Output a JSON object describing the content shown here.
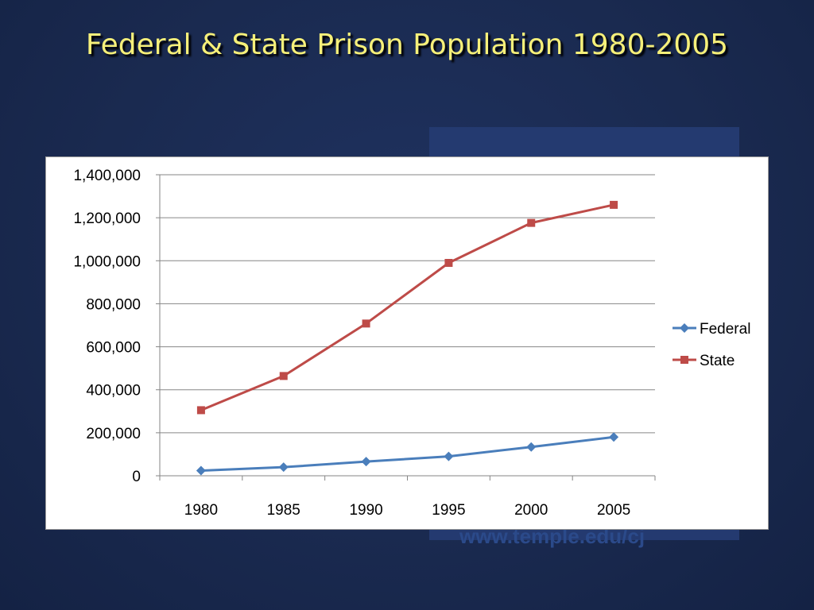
{
  "slide": {
    "title": "Federal & State Prison Population 1980-2005",
    "watermark_url": "www.temple.edu/cj"
  },
  "chart_data": {
    "type": "line",
    "title": "",
    "xlabel": "",
    "ylabel": "",
    "categories": [
      "1980",
      "1985",
      "1990",
      "1995",
      "2000",
      "2005"
    ],
    "ylim": [
      0,
      1400000
    ],
    "yticks": [
      0,
      200000,
      400000,
      600000,
      800000,
      1000000,
      1200000,
      1400000
    ],
    "ytick_labels": [
      "0",
      "200,000",
      "400,000",
      "600,000",
      "800,000",
      "1,000,000",
      "1,200,000",
      "1,400,000"
    ],
    "grid": true,
    "legend_position": "right",
    "series": [
      {
        "name": "Federal",
        "color": "#4a7ebb",
        "marker": "diamond",
        "values": [
          24000,
          40000,
          66000,
          90000,
          134000,
          180000
        ]
      },
      {
        "name": "State",
        "color": "#be4b48",
        "marker": "square",
        "values": [
          305000,
          464000,
          708000,
          990000,
          1176000,
          1260000
        ]
      }
    ]
  }
}
